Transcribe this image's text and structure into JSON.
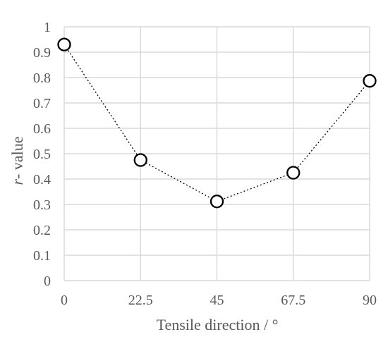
{
  "chart_data": {
    "type": "scatter",
    "xlabel": "Tensile direction / °",
    "ylabel_italic": "r",
    "ylabel_rest": "- value",
    "x_ticks": [
      "0",
      "22.5",
      "45",
      "67.5",
      "90"
    ],
    "y_ticks": [
      "0",
      "0.1",
      "0.2",
      "0.3",
      "0.4",
      "0.5",
      "0.6",
      "0.7",
      "0.8",
      "0.9",
      "1"
    ],
    "xlim": [
      0,
      90
    ],
    "ylim": [
      0,
      1
    ],
    "grid": true,
    "line_style": "dotted",
    "marker": "open-circle",
    "series": [
      {
        "x": [
          0,
          22.5,
          45,
          67.5,
          90
        ],
        "y": [
          0.93,
          0.475,
          0.312,
          0.425,
          0.787
        ]
      }
    ]
  }
}
